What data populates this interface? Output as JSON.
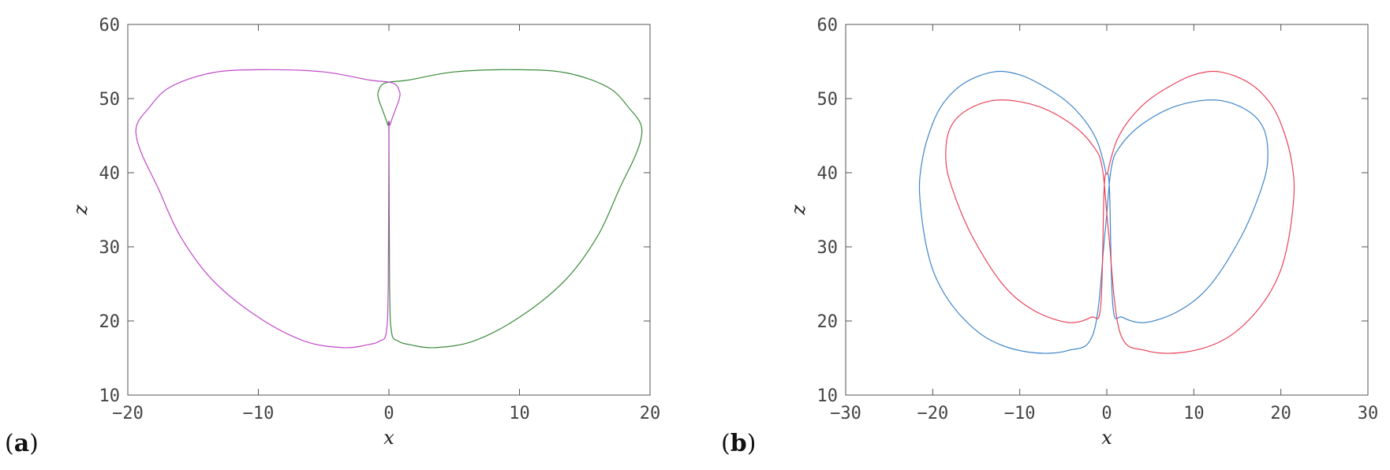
{
  "chart_data": [
    {
      "type": "line",
      "panel_label": "a",
      "xlabel": "x",
      "ylabel": "z",
      "xlim": [
        -20,
        20
      ],
      "ylim": [
        10,
        60
      ],
      "xticks": [
        -20,
        -10,
        0,
        10,
        20
      ],
      "yticks": [
        10,
        20,
        30,
        40,
        50,
        60
      ],
      "xtick_labels": [
        "−20",
        "−10",
        "0",
        "10",
        "20"
      ],
      "ytick_labels": [
        "10",
        "20",
        "30",
        "40",
        "50",
        "60"
      ],
      "grid": false,
      "series": [
        {
          "color": "#3a8a3a",
          "x": [
            0,
            0.05,
            0.2,
            0.7,
            1.6,
            3.5,
            6.5,
            10,
            13.5,
            16,
            17.7,
            18.8,
            19.3,
            19.3,
            18.5,
            16.8,
            13.5,
            9.5,
            5.0,
            1.5,
            -0.3,
            -0.8,
            -0.8,
            -0.5,
            -0.1,
            0
          ],
          "y": [
            45,
            25,
            18.5,
            17.3,
            16.8,
            16.4,
            17.3,
            20.5,
            25.5,
            31.5,
            38,
            42,
            44.5,
            46.5,
            48.5,
            51.5,
            53.5,
            53.9,
            53.6,
            52.5,
            52.1,
            51.0,
            50.0,
            48.5,
            46.5,
            45
          ]
        },
        {
          "color": "#c048c8",
          "x": [
            0,
            -0.05,
            -0.2,
            -0.7,
            -1.6,
            -3.5,
            -6.5,
            -10,
            -13.5,
            -16,
            -17.7,
            -18.8,
            -19.3,
            -19.3,
            -18.5,
            -16.8,
            -13.5,
            -9.5,
            -5.0,
            -1.5,
            0.3,
            0.8,
            0.8,
            0.5,
            0.1,
            0
          ],
          "y": [
            45,
            25,
            18.5,
            17.3,
            16.8,
            16.4,
            17.3,
            20.5,
            25.5,
            31.5,
            38,
            42,
            44.5,
            46.5,
            48.5,
            51.5,
            53.5,
            53.9,
            53.6,
            52.5,
            52.1,
            51.0,
            50.0,
            48.5,
            46.5,
            45
          ]
        }
      ]
    },
    {
      "type": "line",
      "panel_label": "b",
      "xlabel": "x",
      "ylabel": "z",
      "xlim": [
        -30,
        30
      ],
      "ylim": [
        10,
        60
      ],
      "xticks": [
        -30,
        -20,
        -10,
        0,
        10,
        20,
        30
      ],
      "yticks": [
        10,
        20,
        30,
        40,
        50,
        60
      ],
      "xtick_labels": [
        "−30",
        "−20",
        "−10",
        "0",
        "10",
        "20",
        "30"
      ],
      "ytick_labels": [
        "10",
        "20",
        "30",
        "40",
        "50",
        "60"
      ],
      "grid": false,
      "series": [
        {
          "color": "#3f86c8",
          "x": [
            0.3,
            0.7,
            1.8,
            4.5,
            8.5,
            12.0,
            15.5,
            17.8,
            18.5,
            18.0,
            16.0,
            12.5,
            8.0,
            4.0,
            1.5,
            0.5,
            -0.2,
            -1.5,
            -4.5,
            -9.0,
            -13.5,
            -17.0,
            -19.5,
            -20.8,
            -21.5,
            -21.3,
            -20.5,
            -19.0,
            -16.5,
            -13.0,
            -10.0,
            -7.0,
            -4.5,
            -2.5,
            -1.2,
            -0.5,
            -0.1,
            0.3
          ],
          "y": [
            38,
            22,
            20.5,
            19.8,
            21.5,
            25.0,
            31.5,
            38.0,
            42.0,
            46.0,
            48.5,
            49.8,
            49.0,
            46.5,
            43.5,
            40.5,
            32.0,
            18.5,
            16.0,
            15.8,
            17.5,
            21.0,
            25.5,
            30.5,
            37.0,
            41.0,
            45.0,
            49.0,
            52.0,
            53.6,
            53.2,
            51.5,
            49.5,
            47.0,
            44.5,
            42.0,
            40.0,
            38.0
          ]
        },
        {
          "color": "#e8445a",
          "x": [
            -0.3,
            -0.7,
            -1.8,
            -4.5,
            -8.5,
            -12.0,
            -15.5,
            -17.8,
            -18.5,
            -18.0,
            -16.0,
            -12.5,
            -8.0,
            -4.0,
            -1.5,
            -0.5,
            0.2,
            1.5,
            4.5,
            9.0,
            13.5,
            17.0,
            19.5,
            20.8,
            21.5,
            21.3,
            20.5,
            19.0,
            16.5,
            13.0,
            10.0,
            7.0,
            4.5,
            2.5,
            1.2,
            0.5,
            0.1,
            -0.3
          ],
          "y": [
            38,
            22,
            20.5,
            19.8,
            21.5,
            25.0,
            31.5,
            38.0,
            42.0,
            46.0,
            48.5,
            49.8,
            49.0,
            46.5,
            43.5,
            40.5,
            32.0,
            18.5,
            16.0,
            15.8,
            17.5,
            21.0,
            25.5,
            30.5,
            37.0,
            41.0,
            45.0,
            49.0,
            52.0,
            53.6,
            53.2,
            51.5,
            49.5,
            47.0,
            44.5,
            42.0,
            40.0,
            38.0
          ]
        }
      ]
    }
  ]
}
